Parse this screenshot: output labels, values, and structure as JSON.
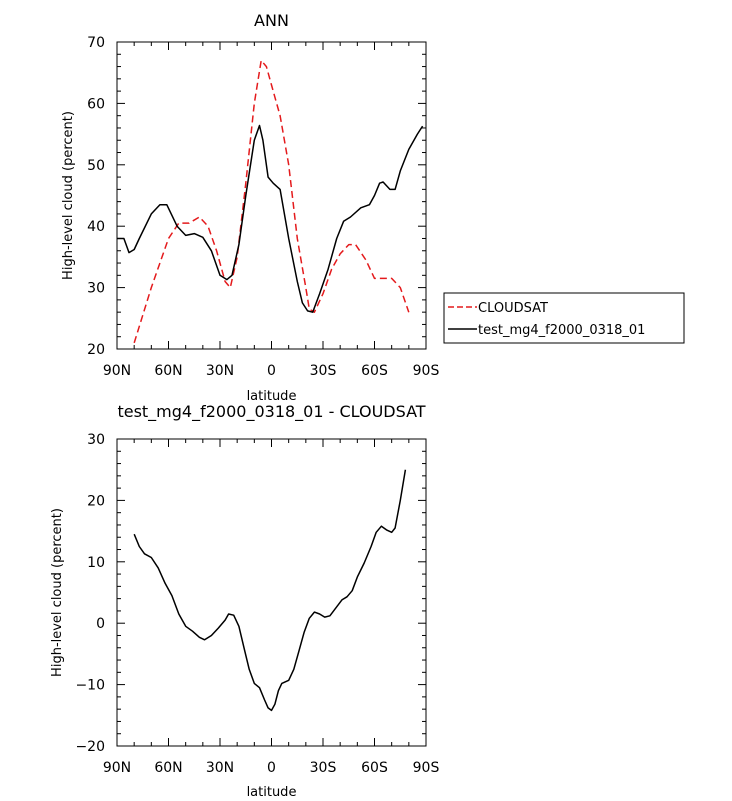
{
  "chart_data": [
    {
      "type": "line",
      "title": "ANN",
      "xlabel": "latitude",
      "ylabel": "High-level cloud (percent)",
      "xlim": [
        -90,
        90
      ],
      "ylim": [
        20,
        70
      ],
      "x_ticks": [
        -90,
        -60,
        -30,
        0,
        30,
        60,
        90
      ],
      "x_tick_labels": [
        "90N",
        "60N",
        "30N",
        "0",
        "30S",
        "60S",
        "90S"
      ],
      "y_ticks": [
        20,
        30,
        40,
        50,
        60,
        70
      ],
      "y_tick_labels": [
        "20",
        "30",
        "40",
        "50",
        "60",
        "70"
      ],
      "legend": "right",
      "series": [
        {
          "name": "CLOUDSAT",
          "color": "#e41a1c",
          "dash": "dashed",
          "points": [
            [
              -80,
              21
            ],
            [
              -70,
              30
            ],
            [
              -60,
              38
            ],
            [
              -54,
              40.5
            ],
            [
              -48,
              40.5
            ],
            [
              -42,
              41.5
            ],
            [
              -37,
              40
            ],
            [
              -32,
              36
            ],
            [
              -27,
              31
            ],
            [
              -24,
              30
            ],
            [
              -20,
              35
            ],
            [
              -15,
              47
            ],
            [
              -10,
              60
            ],
            [
              -6,
              67
            ],
            [
              -3,
              66
            ],
            [
              0,
              63
            ],
            [
              5,
              58
            ],
            [
              10,
              50
            ],
            [
              15,
              38
            ],
            [
              20,
              30
            ],
            [
              22,
              26.5
            ],
            [
              25,
              26
            ],
            [
              30,
              29
            ],
            [
              35,
              33
            ],
            [
              40,
              35.5
            ],
            [
              45,
              37
            ],
            [
              49,
              37
            ],
            [
              55,
              34.5
            ],
            [
              60,
              31.5
            ],
            [
              65,
              31.5
            ],
            [
              70,
              31.5
            ],
            [
              75,
              30
            ],
            [
              80,
              26
            ]
          ]
        },
        {
          "name": "test_mg4_f2000_0318_01",
          "color": "#000000",
          "dash": "solid",
          "points": [
            [
              -90,
              38
            ],
            [
              -86,
              38
            ],
            [
              -83,
              35.7
            ],
            [
              -80,
              36.2
            ],
            [
              -77,
              38
            ],
            [
              -70,
              42
            ],
            [
              -65,
              43.5
            ],
            [
              -61,
              43.5
            ],
            [
              -55,
              40
            ],
            [
              -50,
              38.5
            ],
            [
              -45,
              38.8
            ],
            [
              -40,
              38.2
            ],
            [
              -35,
              36
            ],
            [
              -30,
              32
            ],
            [
              -26,
              31.3
            ],
            [
              -23,
              32
            ],
            [
              -19,
              37
            ],
            [
              -15,
              45
            ],
            [
              -10,
              54
            ],
            [
              -7,
              56.4
            ],
            [
              -5,
              54
            ],
            [
              -2,
              48
            ],
            [
              1,
              47
            ],
            [
              5,
              46
            ],
            [
              10,
              38
            ],
            [
              15,
              31
            ],
            [
              18,
              27.5
            ],
            [
              21,
              26.2
            ],
            [
              24,
              26
            ],
            [
              28,
              29
            ],
            [
              33,
              33
            ],
            [
              38,
              38
            ],
            [
              42,
              40.8
            ],
            [
              46,
              41.5
            ],
            [
              52,
              43
            ],
            [
              57,
              43.5
            ],
            [
              60,
              45
            ],
            [
              63,
              47
            ],
            [
              65,
              47.2
            ],
            [
              69,
              46
            ],
            [
              72,
              46
            ],
            [
              75,
              49
            ],
            [
              80,
              52.5
            ],
            [
              85,
              55
            ],
            [
              88,
              56.3
            ]
          ]
        }
      ]
    },
    {
      "type": "line",
      "title": "test_mg4_f2000_0318_01 - CLOUDSAT",
      "xlabel": "latitude",
      "ylabel": "High-level cloud (percent)",
      "xlim": [
        -90,
        90
      ],
      "ylim": [
        -20,
        30
      ],
      "x_ticks": [
        -90,
        -60,
        -30,
        0,
        30,
        60,
        90
      ],
      "x_tick_labels": [
        "90N",
        "60N",
        "30N",
        "0",
        "30S",
        "60S",
        "90S"
      ],
      "y_ticks": [
        -20,
        -10,
        0,
        10,
        20,
        30
      ],
      "y_tick_labels": [
        "−20",
        "−10",
        "0",
        "10",
        "20",
        "30"
      ],
      "series": [
        {
          "color": "#000000",
          "dash": "solid",
          "points": [
            [
              -80,
              14.5
            ],
            [
              -77,
              12.5
            ],
            [
              -74,
              11.3
            ],
            [
              -70,
              10.7
            ],
            [
              -66,
              9
            ],
            [
              -62,
              6.5
            ],
            [
              -58,
              4.5
            ],
            [
              -54,
              1.5
            ],
            [
              -50,
              -0.5
            ],
            [
              -46,
              -1.3
            ],
            [
              -42,
              -2.3
            ],
            [
              -39,
              -2.7
            ],
            [
              -35,
              -2
            ],
            [
              -31,
              -0.8
            ],
            [
              -27,
              0.5
            ],
            [
              -25,
              1.5
            ],
            [
              -22,
              1.3
            ],
            [
              -19,
              -0.5
            ],
            [
              -16,
              -4
            ],
            [
              -13,
              -7.5
            ],
            [
              -10,
              -9.8
            ],
            [
              -7,
              -10.5
            ],
            [
              -4,
              -12.5
            ],
            [
              -2,
              -13.8
            ],
            [
              0,
              -14.2
            ],
            [
              2,
              -13.2
            ],
            [
              4,
              -11
            ],
            [
              6,
              -9.8
            ],
            [
              10,
              -9.3
            ],
            [
              13,
              -7.5
            ],
            [
              16,
              -4.5
            ],
            [
              19,
              -1.5
            ],
            [
              22,
              0.8
            ],
            [
              25,
              1.8
            ],
            [
              28,
              1.5
            ],
            [
              31,
              1
            ],
            [
              34,
              1.2
            ],
            [
              37,
              2.3
            ],
            [
              41,
              3.8
            ],
            [
              44,
              4.3
            ],
            [
              47,
              5.3
            ],
            [
              50,
              7.5
            ],
            [
              54,
              9.8
            ],
            [
              58,
              12.5
            ],
            [
              61,
              14.8
            ],
            [
              64,
              15.8
            ],
            [
              67,
              15.2
            ],
            [
              70,
              14.8
            ],
            [
              72,
              15.5
            ],
            [
              75,
              20
            ],
            [
              78,
              25
            ]
          ]
        }
      ]
    }
  ]
}
